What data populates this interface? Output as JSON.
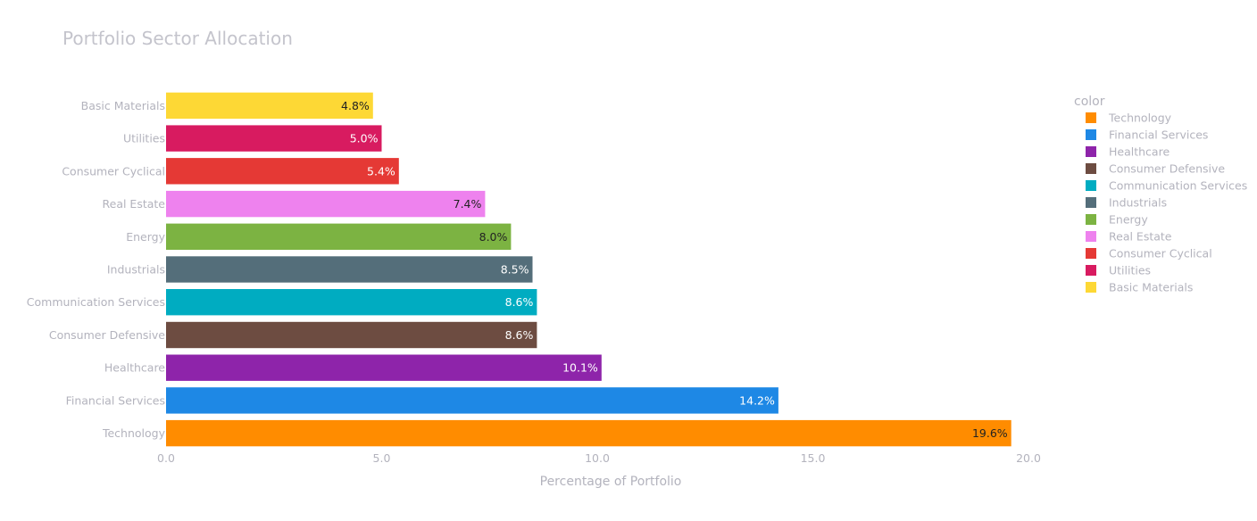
{
  "chart_data": {
    "type": "bar",
    "orientation": "horizontal",
    "title": "Portfolio Sector Allocation",
    "xlabel": "Percentage of Portfolio",
    "ylabel": "",
    "xlim": [
      0,
      20
    ],
    "xticks": [
      "0.0",
      "5.0",
      "10.0",
      "15.0",
      "20.0"
    ],
    "grid": false,
    "legend": {
      "title": "color",
      "position": "right"
    },
    "categories": [
      "Technology",
      "Financial Services",
      "Healthcare",
      "Consumer Defensive",
      "Communication Services",
      "Industrials",
      "Energy",
      "Real Estate",
      "Consumer Cyclical",
      "Utilities",
      "Basic Materials"
    ],
    "values": [
      19.6,
      14.2,
      10.1,
      8.6,
      8.6,
      8.5,
      8.0,
      7.4,
      5.4,
      5.0,
      4.8
    ],
    "labels": [
      "19.6%",
      "14.2%",
      "10.1%",
      "8.6%",
      "8.6%",
      "8.5%",
      "8.0%",
      "7.4%",
      "5.4%",
      "5.0%",
      "4.8%"
    ],
    "colors": [
      "#ff8c00",
      "#1e88e5",
      "#8e24aa",
      "#6d4c41",
      "#00acc1",
      "#546e7a",
      "#7cb342",
      "#ee82ee",
      "#e53935",
      "#d81b60",
      "#fdd835"
    ],
    "label_colors": [
      "#222222",
      "#ffffff",
      "#ffffff",
      "#ffffff",
      "#ffffff",
      "#ffffff",
      "#222222",
      "#222222",
      "#ffffff",
      "#ffffff",
      "#222222"
    ]
  }
}
